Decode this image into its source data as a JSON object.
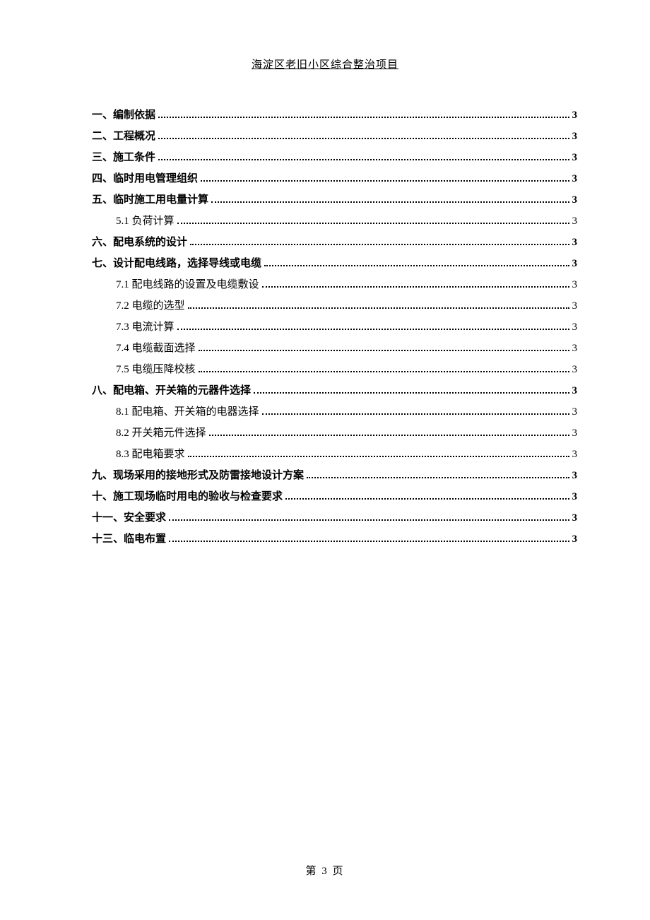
{
  "header": {
    "title": "海淀区老旧小区综合整治项目"
  },
  "toc": {
    "items": [
      {
        "level": 1,
        "title": "一、编制依据",
        "page": "3"
      },
      {
        "level": 1,
        "title": "二、工程概况",
        "page": "3"
      },
      {
        "level": 1,
        "title": "三、施工条件",
        "page": "3"
      },
      {
        "level": 1,
        "title": "四、临时用电管理组织",
        "page": "3"
      },
      {
        "level": 1,
        "title": "五、临时施工用电量计算",
        "page": "3"
      },
      {
        "level": 2,
        "title": "5.1 负荷计算",
        "page": "3"
      },
      {
        "level": 1,
        "title": "六、配电系统的设计",
        "page": "3"
      },
      {
        "level": 1,
        "title": "七、设计配电线路，选择导线或电缆",
        "page": "3"
      },
      {
        "level": 2,
        "title": "7.1 配电线路的设置及电缆敷设",
        "page": "3"
      },
      {
        "level": 2,
        "title": "7.2 电缆的选型",
        "page": "3"
      },
      {
        "level": 2,
        "title": "7.3 电流计算",
        "page": "3"
      },
      {
        "level": 2,
        "title": "7.4 电缆截面选择",
        "page": "3"
      },
      {
        "level": 2,
        "title": "7.5 电缆压降校核",
        "page": "3"
      },
      {
        "level": 1,
        "title": "八、配电箱、开关箱的元器件选择",
        "page": "3"
      },
      {
        "level": 2,
        "title": "8.1 配电箱、开关箱的电器选择",
        "page": "3"
      },
      {
        "level": 2,
        "title": "8.2 开关箱元件选择",
        "page": "3"
      },
      {
        "level": 2,
        "title": "8.3 配电箱要求",
        "page": "3"
      },
      {
        "level": 1,
        "title": "九、现场采用的接地形式及防雷接地设计方案",
        "page": "3"
      },
      {
        "level": 1,
        "title": "十、施工现场临时用电的验收与检查要求",
        "page": "3"
      },
      {
        "level": 1,
        "title": "十一、安全要求",
        "page": "3"
      },
      {
        "level": 1,
        "title": "十三、临电布置",
        "page": "3"
      }
    ]
  },
  "footer": {
    "page_label": "第 3 页"
  }
}
